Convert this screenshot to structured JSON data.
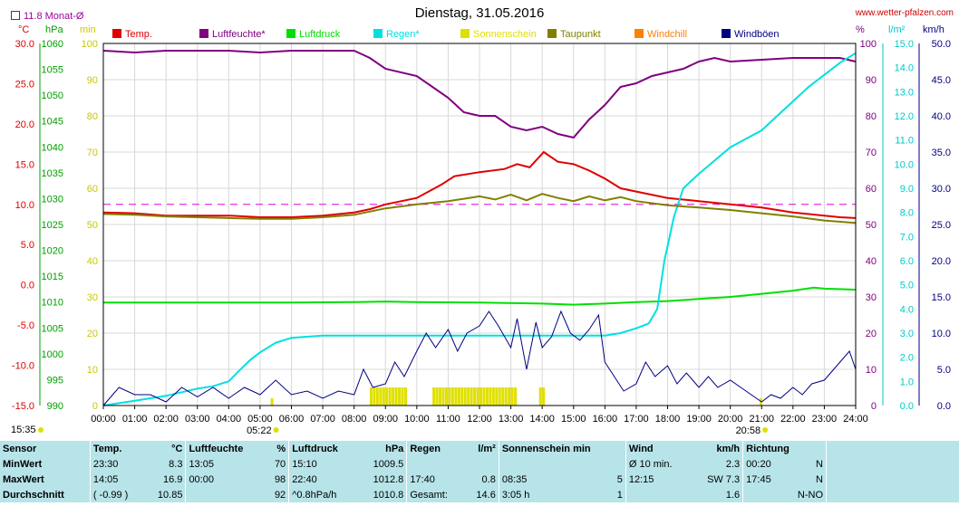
{
  "header": {
    "title": "Dienstag, 31.05.2016",
    "site": "www.wetter-pfalzen.com",
    "month_avg": "11.8 Monat-Ø"
  },
  "axes": {
    "unit_temp": "°C",
    "unit_press": "hPa",
    "unit_min": "min",
    "unit_hum": "%",
    "unit_rain": "l/m²",
    "unit_wind": "km/h",
    "temp_ticks": [
      "30.0",
      "25.0",
      "20.0",
      "15.0",
      "10.0",
      "5.0",
      "0.0",
      "-5.0",
      "-10.0",
      "-15.0"
    ],
    "press_ticks": [
      "1060",
      "1055",
      "1050",
      "1045",
      "1040",
      "1035",
      "1030",
      "1025",
      "1020",
      "1015",
      "1010",
      "1005",
      "1000",
      "995",
      "990"
    ],
    "min_ticks": [
      "100",
      "90",
      "80",
      "70",
      "60",
      "50",
      "40",
      "30",
      "20",
      "10",
      "0"
    ],
    "hum_ticks": [
      "100",
      "90",
      "80",
      "70",
      "60",
      "50",
      "40",
      "30",
      "20",
      "10",
      "0"
    ],
    "rain_ticks": [
      "15.0",
      "14.0",
      "13.0",
      "12.0",
      "11.0",
      "10.0",
      "9.0",
      "8.0",
      "7.0",
      "6.0",
      "5.0",
      "4.0",
      "3.0",
      "2.0",
      "1.0",
      "0.0"
    ],
    "wind_ticks": [
      "50.0",
      "45.0",
      "40.0",
      "35.0",
      "30.0",
      "25.0",
      "20.0",
      "15.0",
      "10.0",
      "5.0",
      "0.0"
    ],
    "time_ticks": [
      "00:00",
      "01:00",
      "02:00",
      "03:00",
      "04:00",
      "05:00",
      "06:00",
      "07:00",
      "08:00",
      "09:00",
      "10:00",
      "11:00",
      "12:00",
      "13:00",
      "14:00",
      "15:00",
      "16:00",
      "17:00",
      "18:00",
      "19:00",
      "20:00",
      "21:00",
      "22:00",
      "23:00",
      "24:00"
    ],
    "sunrise": "05:22",
    "sunset": "20:58",
    "daylight": "15:35"
  },
  "chart_data": {
    "type": "line",
    "x_unit": "hours",
    "legend": [
      {
        "name": "Temp.",
        "color": "#e00000"
      },
      {
        "name": "Luftfeuchte*",
        "color": "#800080"
      },
      {
        "name": "Luftdruck",
        "color": "#00e000"
      },
      {
        "name": "Regen*",
        "color": "#00e0e0"
      },
      {
        "name": "Sonnenschein",
        "color": "#e0e000"
      },
      {
        "name": "Taupunkt",
        "color": "#808000"
      },
      {
        "name": "Windchill",
        "color": "#ff8000"
      },
      {
        "name": "Windböen",
        "color": "#000080"
      }
    ],
    "reference_line": {
      "axis": "temp",
      "value": 10.0,
      "color": "#e000e0"
    },
    "series": [
      {
        "name": "Temp.",
        "axis": "temp",
        "color": "#e00000",
        "points": [
          [
            0,
            9.0
          ],
          [
            1,
            8.9
          ],
          [
            2,
            8.6
          ],
          [
            3,
            8.6
          ],
          [
            4,
            8.6
          ],
          [
            5,
            8.4
          ],
          [
            6,
            8.4
          ],
          [
            7,
            8.6
          ],
          [
            8,
            9.0
          ],
          [
            8.5,
            9.4
          ],
          [
            9,
            10.0
          ],
          [
            10,
            10.8
          ],
          [
            10.8,
            12.5
          ],
          [
            11.2,
            13.5
          ],
          [
            12,
            14.0
          ],
          [
            12.8,
            14.4
          ],
          [
            13.2,
            15.0
          ],
          [
            13.6,
            14.6
          ],
          [
            14.05,
            16.5
          ],
          [
            14.5,
            15.3
          ],
          [
            15,
            15.0
          ],
          [
            15.5,
            14.2
          ],
          [
            16,
            13.2
          ],
          [
            16.5,
            12.0
          ],
          [
            17,
            11.6
          ],
          [
            18,
            10.8
          ],
          [
            19,
            10.4
          ],
          [
            20,
            10.0
          ],
          [
            21,
            9.6
          ],
          [
            22,
            9.0
          ],
          [
            23,
            8.6
          ],
          [
            23.5,
            8.4
          ],
          [
            24,
            8.3
          ]
        ]
      },
      {
        "name": "Luftfeuchte*",
        "axis": "hum",
        "color": "#800080",
        "points": [
          [
            0,
            98
          ],
          [
            1,
            97.5
          ],
          [
            2,
            98
          ],
          [
            3,
            98
          ],
          [
            4,
            98
          ],
          [
            5,
            97.5
          ],
          [
            6,
            98
          ],
          [
            7,
            98
          ],
          [
            8,
            98
          ],
          [
            8.5,
            96
          ],
          [
            9,
            93
          ],
          [
            10,
            91
          ],
          [
            10.5,
            88
          ],
          [
            11,
            85
          ],
          [
            11.5,
            81
          ],
          [
            12,
            80
          ],
          [
            12.5,
            80
          ],
          [
            13,
            77
          ],
          [
            13.5,
            76
          ],
          [
            14,
            77
          ],
          [
            14.5,
            75
          ],
          [
            15,
            74
          ],
          [
            15.5,
            79
          ],
          [
            16,
            83
          ],
          [
            16.5,
            88
          ],
          [
            17,
            89
          ],
          [
            17.5,
            91
          ],
          [
            18,
            92
          ],
          [
            18.5,
            93
          ],
          [
            19,
            95
          ],
          [
            19.5,
            96
          ],
          [
            20,
            95
          ],
          [
            21,
            95.5
          ],
          [
            22,
            96
          ],
          [
            23,
            96
          ],
          [
            23.5,
            96
          ],
          [
            24,
            95
          ]
        ]
      },
      {
        "name": "Luftdruck",
        "axis": "press",
        "color": "#00e000",
        "points": [
          [
            0,
            1009.9
          ],
          [
            2,
            1009.9
          ],
          [
            4,
            1009.9
          ],
          [
            6,
            1009.9
          ],
          [
            8,
            1010.0
          ],
          [
            9,
            1010.1
          ],
          [
            10,
            1010.0
          ],
          [
            12,
            1009.9
          ],
          [
            14,
            1009.7
          ],
          [
            15,
            1009.5
          ],
          [
            16,
            1009.7
          ],
          [
            17,
            1010.0
          ],
          [
            18,
            1010.2
          ],
          [
            19,
            1010.6
          ],
          [
            20,
            1011.0
          ],
          [
            21,
            1011.6
          ],
          [
            22,
            1012.2
          ],
          [
            22.67,
            1012.8
          ],
          [
            23,
            1012.6
          ],
          [
            24,
            1012.4
          ]
        ]
      },
      {
        "name": "Regen*",
        "axis": "rain",
        "color": "#00e0e0",
        "points": [
          [
            0,
            0
          ],
          [
            1,
            0.2
          ],
          [
            2,
            0.4
          ],
          [
            3,
            0.7
          ],
          [
            3.5,
            0.8
          ],
          [
            4,
            1.0
          ],
          [
            4.3,
            1.4
          ],
          [
            4.7,
            1.9
          ],
          [
            5,
            2.2
          ],
          [
            5.5,
            2.6
          ],
          [
            6,
            2.8
          ],
          [
            7,
            2.9
          ],
          [
            8,
            2.9
          ],
          [
            10,
            2.9
          ],
          [
            12,
            2.9
          ],
          [
            14,
            2.9
          ],
          [
            16,
            2.9
          ],
          [
            16.5,
            3.0
          ],
          [
            17,
            3.2
          ],
          [
            17.4,
            3.4
          ],
          [
            17.67,
            4.0
          ],
          [
            17.9,
            6.0
          ],
          [
            18.2,
            7.8
          ],
          [
            18.5,
            9.0
          ],
          [
            19,
            9.6
          ],
          [
            20,
            10.7
          ],
          [
            21,
            11.4
          ],
          [
            21.5,
            12.0
          ],
          [
            22,
            12.6
          ],
          [
            22.5,
            13.2
          ],
          [
            23,
            13.7
          ],
          [
            23.5,
            14.2
          ],
          [
            24,
            14.6
          ]
        ]
      },
      {
        "name": "Taupunkt",
        "axis": "temp",
        "color": "#808000",
        "points": [
          [
            0,
            8.8
          ],
          [
            1,
            8.7
          ],
          [
            2,
            8.5
          ],
          [
            3,
            8.4
          ],
          [
            4,
            8.3
          ],
          [
            5,
            8.2
          ],
          [
            6,
            8.2
          ],
          [
            7,
            8.4
          ],
          [
            8,
            8.7
          ],
          [
            9,
            9.5
          ],
          [
            10,
            10.0
          ],
          [
            11,
            10.4
          ],
          [
            11.5,
            10.7
          ],
          [
            12,
            11.0
          ],
          [
            12.5,
            10.6
          ],
          [
            13,
            11.2
          ],
          [
            13.5,
            10.5
          ],
          [
            14,
            11.3
          ],
          [
            14.5,
            10.8
          ],
          [
            15,
            10.4
          ],
          [
            15.5,
            11.0
          ],
          [
            16,
            10.5
          ],
          [
            16.5,
            10.9
          ],
          [
            17,
            10.4
          ],
          [
            18,
            9.9
          ],
          [
            19,
            9.6
          ],
          [
            20,
            9.3
          ],
          [
            21,
            8.9
          ],
          [
            22,
            8.5
          ],
          [
            23,
            8.0
          ],
          [
            24,
            7.7
          ]
        ]
      },
      {
        "name": "Windböen",
        "axis": "wind",
        "color": "#000080",
        "points": [
          [
            0,
            0
          ],
          [
            0.5,
            2.5
          ],
          [
            1,
            1.5
          ],
          [
            1.5,
            1.5
          ],
          [
            2,
            0.5
          ],
          [
            2.5,
            2.5
          ],
          [
            3,
            1.2
          ],
          [
            3.5,
            2.5
          ],
          [
            4,
            1.0
          ],
          [
            4.5,
            2.5
          ],
          [
            5,
            1.5
          ],
          [
            5.5,
            3.5
          ],
          [
            6,
            1.5
          ],
          [
            6.5,
            2.0
          ],
          [
            7,
            1.0
          ],
          [
            7.5,
            2.0
          ],
          [
            8,
            1.5
          ],
          [
            8.3,
            5.0
          ],
          [
            8.6,
            2.5
          ],
          [
            9,
            3.0
          ],
          [
            9.3,
            6.0
          ],
          [
            9.6,
            4.0
          ],
          [
            10,
            7.5
          ],
          [
            10.3,
            10.0
          ],
          [
            10.6,
            8.0
          ],
          [
            11,
            10.5
          ],
          [
            11.3,
            7.5
          ],
          [
            11.6,
            10.0
          ],
          [
            12,
            11.0
          ],
          [
            12.3,
            13.0
          ],
          [
            12.6,
            11.0
          ],
          [
            13,
            8.0
          ],
          [
            13.2,
            12.0
          ],
          [
            13.5,
            5.0
          ],
          [
            13.8,
            11.5
          ],
          [
            14,
            8.0
          ],
          [
            14.3,
            9.5
          ],
          [
            14.6,
            13.0
          ],
          [
            14.9,
            10.0
          ],
          [
            15.2,
            9.0
          ],
          [
            15.5,
            10.5
          ],
          [
            15.8,
            12.5
          ],
          [
            16,
            6.0
          ],
          [
            16.3,
            4.0
          ],
          [
            16.6,
            2.0
          ],
          [
            17,
            3.0
          ],
          [
            17.3,
            6.0
          ],
          [
            17.6,
            4.0
          ],
          [
            18,
            5.5
          ],
          [
            18.3,
            3.0
          ],
          [
            18.6,
            4.5
          ],
          [
            19,
            2.5
          ],
          [
            19.3,
            4.0
          ],
          [
            19.6,
            2.5
          ],
          [
            20,
            3.5
          ],
          [
            20.5,
            2.0
          ],
          [
            21,
            0.5
          ],
          [
            21.3,
            1.5
          ],
          [
            21.6,
            1.0
          ],
          [
            22,
            2.5
          ],
          [
            22.3,
            1.5
          ],
          [
            22.6,
            3.0
          ],
          [
            23,
            3.5
          ],
          [
            23.3,
            5.0
          ],
          [
            23.6,
            6.5
          ],
          [
            23.8,
            7.5
          ],
          [
            24,
            5.0
          ]
        ]
      }
    ],
    "sunshine_minutes": [
      {
        "from": 8.5,
        "to": 9.6
      },
      {
        "from": 10.5,
        "to": 12.2
      },
      {
        "from": 12.3,
        "to": 13.1
      },
      {
        "from": 13.9,
        "to": 14.1
      }
    ]
  },
  "stats": {
    "headers": {
      "sensor": "Sensor",
      "temp": "Temp.",
      "temp_unit": "°C",
      "hum": "Luftfeuchte",
      "hum_unit": "%",
      "press": "Luftdruck",
      "press_unit": "hPa",
      "rain": "Regen",
      "rain_unit": "l/m²",
      "sun": "Sonnenschein min",
      "wind": "Wind",
      "wind_unit": "km/h",
      "dir": "Richtung"
    },
    "rows": [
      {
        "label": "MinWert",
        "t_time": "23:30",
        "t_val": "8.3",
        "h_time": "13:05",
        "h_val": "70",
        "p_time": "15:10",
        "p_val": "1009.5",
        "r_time": "",
        "r_val": "",
        "s_time": "",
        "s_val": "",
        "w_label": "Ø 10 min.",
        "w_val": "2.3",
        "d_time": "00:20",
        "d_val": "N"
      },
      {
        "label": "MaxWert",
        "t_time": "14:05",
        "t_val": "16.9",
        "h_time": "00:00",
        "h_val": "98",
        "p_time": "22:40",
        "p_val": "1012.8",
        "r_time": "17:40",
        "r_val": "0.8",
        "s_time": "08:35",
        "s_val": "5",
        "w_label": "12:15",
        "w_val": "SW 7.3",
        "d_time": "17:45",
        "d_val": "N"
      },
      {
        "label": "Durchschnitt",
        "t_time": "( -0.99 )",
        "t_val": "10.85",
        "h_time": "",
        "h_val": "92",
        "p_time": "^0.8hPa/h",
        "p_val": "1010.8",
        "r_time": "Gesamt:",
        "r_val": "14.6",
        "s_time": "3:05 h",
        "s_val": "1",
        "w_label": "",
        "w_val": "1.6",
        "d_time": "",
        "d_val": "N-NO"
      }
    ]
  }
}
